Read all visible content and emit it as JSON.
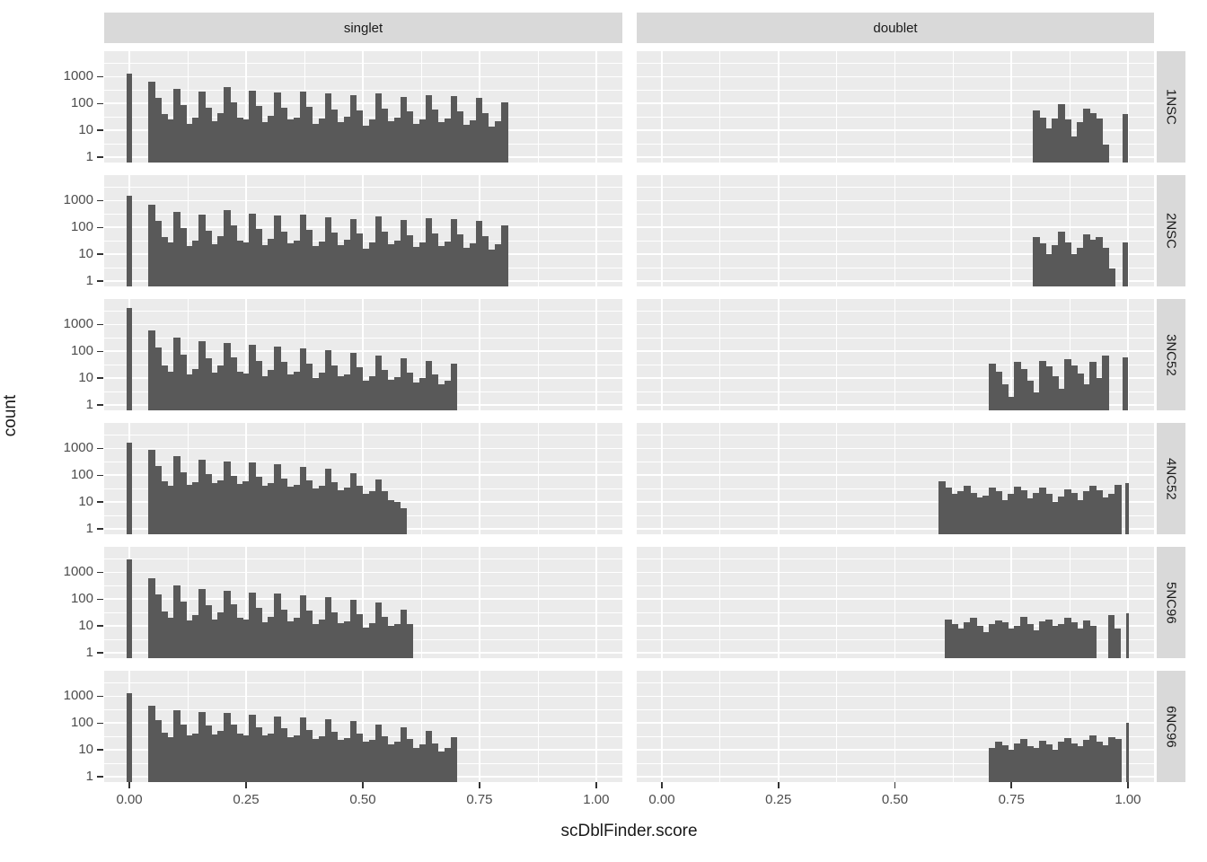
{
  "chart_data": {
    "type": "bar",
    "subtype": "faceted-log-histogram",
    "title": "",
    "xlabel": "scDblFinder.score",
    "ylabel": "count",
    "col_facets": [
      "singlet",
      "doublet"
    ],
    "row_facets": [
      "1NSC",
      "2NSC",
      "3NC52",
      "4NC52",
      "5NC96",
      "6NC96"
    ],
    "x_axis": {
      "label": "scDblFinder.score",
      "ticks": [
        0,
        0.25,
        0.5,
        0.75,
        1.0
      ],
      "tick_labels": [
        "0.00",
        "0.25",
        "0.50",
        "0.75",
        "1.00"
      ],
      "range": [
        -0.054,
        1.056
      ]
    },
    "y_axis": {
      "label": "count",
      "scale": "log10",
      "ticks": [
        1,
        10,
        100,
        1000
      ],
      "tick_labels": [
        "1",
        "10",
        "100",
        "1000"
      ],
      "log_range": [
        -0.2,
        3.95
      ],
      "minor_log_ticks": [
        0.5,
        1.5,
        2.5,
        3.5
      ]
    },
    "grid": {
      "major_x": [
        0,
        0.25,
        0.5,
        0.75,
        1.0
      ],
      "minor_x": [
        0.125,
        0.375,
        0.625,
        0.875
      ],
      "on": true
    },
    "legend": "none",
    "binwidth": 0.0135,
    "colors": {
      "bar": "#595959",
      "panel_bg": "#EBEBEB",
      "strip_bg": "#D9D9D9",
      "grid": "#FFFFFF",
      "axis_text": "#4D4D4D",
      "strip_text": "#1A1A1A",
      "tick_mark": "#333333"
    },
    "panels": [
      {
        "row": "1NSC",
        "col": "singlet",
        "zero_bar": {
          "x": -0.005,
          "width": 0.01,
          "count": 1300
        },
        "bins_start": 0.0405,
        "counts": [
          650,
          160,
          40,
          25,
          350,
          90,
          18,
          30,
          270,
          70,
          22,
          45,
          420,
          110,
          30,
          25,
          300,
          80,
          20,
          35,
          260,
          70,
          25,
          30,
          280,
          75,
          18,
          28,
          230,
          60,
          20,
          32,
          200,
          55,
          15,
          25,
          240,
          65,
          22,
          30,
          180,
          50,
          18,
          26,
          210,
          58,
          20,
          28,
          190,
          52,
          16,
          24,
          160,
          45,
          14,
          22,
          110
        ]
      },
      {
        "row": "1NSC",
        "col": "doublet",
        "bins_start": 0.7965,
        "counts": [
          55,
          30,
          12,
          28,
          95,
          25,
          6,
          20,
          65,
          45,
          28,
          3
        ],
        "extra_bars": [
          {
            "x": 0.988,
            "width": 0.012,
            "count": 40
          }
        ]
      },
      {
        "row": "2NSC",
        "col": "singlet",
        "zero_bar": {
          "x": -0.005,
          "width": 0.01,
          "count": 1500
        },
        "bins_start": 0.0405,
        "counts": [
          700,
          170,
          45,
          28,
          380,
          95,
          20,
          32,
          290,
          75,
          24,
          48,
          450,
          115,
          32,
          27,
          320,
          85,
          22,
          38,
          270,
          72,
          26,
          32,
          300,
          80,
          20,
          30,
          240,
          62,
          22,
          34,
          210,
          58,
          16,
          27,
          250,
          68,
          24,
          32,
          190,
          52,
          19,
          28,
          220,
          60,
          21,
          30,
          200,
          55,
          17,
          26,
          170,
          48,
          15,
          24,
          120
        ]
      },
      {
        "row": "2NSC",
        "col": "doublet",
        "bins_start": 0.7965,
        "counts": [
          45,
          26,
          10,
          22,
          70,
          28,
          10,
          18,
          55,
          35,
          45,
          18,
          3
        ],
        "extra_bars": [
          {
            "x": 0.988,
            "width": 0.012,
            "count": 28
          }
        ]
      },
      {
        "row": "3NC52",
        "col": "singlet",
        "zero_bar": {
          "x": -0.005,
          "width": 0.01,
          "count": 4000
        },
        "bins_start": 0.0405,
        "counts": [
          600,
          140,
          30,
          18,
          320,
          75,
          14,
          22,
          230,
          55,
          16,
          30,
          200,
          60,
          18,
          15,
          170,
          45,
          12,
          20,
          150,
          40,
          14,
          18,
          130,
          35,
          10,
          16,
          110,
          30,
          12,
          14,
          90,
          25,
          8,
          12,
          70,
          20,
          9,
          11,
          55,
          16,
          7,
          10,
          45,
          14,
          6,
          8,
          35
        ]
      },
      {
        "row": "3NC52",
        "col": "doublet",
        "bins_start": 0.702,
        "counts": [
          35,
          18,
          6,
          2,
          40,
          22,
          8,
          3,
          45,
          28,
          12,
          4,
          50,
          30,
          15,
          6,
          40,
          10,
          70
        ],
        "extra_bars": [
          {
            "x": 0.988,
            "width": 0.012,
            "count": 60
          }
        ]
      },
      {
        "row": "4NC52",
        "col": "singlet",
        "zero_bar": {
          "x": -0.005,
          "width": 0.01,
          "count": 1600
        },
        "bins_start": 0.0405,
        "counts": [
          900,
          220,
          60,
          40,
          500,
          130,
          45,
          55,
          380,
          110,
          50,
          65,
          330,
          95,
          48,
          58,
          290,
          85,
          42,
          50,
          250,
          75,
          38,
          45,
          210,
          65,
          32,
          40,
          170,
          55,
          28,
          34,
          120,
          40,
          20,
          26,
          70,
          25,
          12,
          10,
          6
        ]
      },
      {
        "row": "4NC52",
        "col": "doublet",
        "bins_start": 0.594,
        "counts": [
          60,
          35,
          20,
          25,
          40,
          22,
          15,
          18,
          35,
          25,
          12,
          20,
          38,
          28,
          14,
          22,
          35,
          20,
          10,
          16,
          30,
          22,
          12,
          25,
          40,
          28,
          15,
          20,
          45
        ],
        "extra_bars": [
          {
            "x": 0.994,
            "width": 0.008,
            "count": 50
          }
        ]
      },
      {
        "row": "5NC96",
        "col": "singlet",
        "zero_bar": {
          "x": -0.005,
          "width": 0.01,
          "count": 3000
        },
        "bins_start": 0.0405,
        "counts": [
          600,
          150,
          35,
          20,
          330,
          80,
          16,
          25,
          240,
          60,
          18,
          32,
          210,
          62,
          20,
          17,
          180,
          48,
          14,
          22,
          160,
          42,
          15,
          20,
          140,
          38,
          12,
          18,
          115,
          32,
          13,
          15,
          95,
          27,
          9,
          13,
          75,
          22,
          10,
          12,
          40,
          12
        ]
      },
      {
        "row": "5NC96",
        "col": "doublet",
        "bins_start": 0.6075,
        "counts": [
          18,
          12,
          8,
          14,
          20,
          10,
          6,
          12,
          16,
          14,
          8,
          10,
          22,
          12,
          7,
          15,
          18,
          10,
          12,
          20,
          14,
          8,
          16,
          10
        ],
        "extra_bars": [
          {
            "x": 0.9585,
            "width": 0.0135,
            "count": 25
          },
          {
            "x": 0.972,
            "width": 0.0135,
            "count": 8
          },
          {
            "x": 0.996,
            "width": 0.007,
            "count": 30
          }
        ]
      },
      {
        "row": "6NC96",
        "col": "singlet",
        "zero_bar": {
          "x": -0.005,
          "width": 0.01,
          "count": 1300
        },
        "bins_start": 0.0405,
        "counts": [
          450,
          130,
          45,
          30,
          300,
          90,
          35,
          40,
          260,
          80,
          38,
          50,
          230,
          85,
          42,
          36,
          200,
          70,
          34,
          42,
          180,
          62,
          30,
          36,
          160,
          55,
          26,
          32,
          140,
          48,
          24,
          28,
          115,
          40,
          20,
          24,
          90,
          32,
          16,
          20,
          70,
          25,
          12,
          16,
          50,
          18,
          9,
          12,
          30
        ]
      },
      {
        "row": "6NC96",
        "col": "doublet",
        "bins_start": 0.702,
        "counts": [
          12,
          20,
          15,
          10,
          18,
          25,
          14,
          12,
          22,
          16,
          10,
          20,
          28,
          18,
          14,
          24,
          35,
          20,
          15,
          30,
          25
        ],
        "extra_bars": [
          {
            "x": 0.996,
            "width": 0.007,
            "count": 100
          }
        ]
      }
    ]
  }
}
